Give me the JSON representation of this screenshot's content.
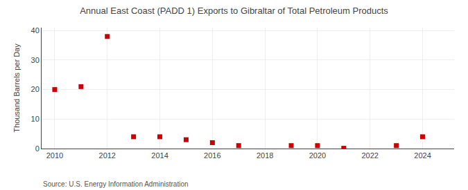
{
  "chart_data": {
    "type": "scatter",
    "title": "Annual East Coast (PADD 1) Exports to Gibraltar of Total Petroleum Products",
    "ylabel": "Thousand Barrels per Day",
    "annotations": [
      "Source: U.S. Energy Information Administration"
    ],
    "x": [
      2010,
      2011,
      2012,
      2013,
      2014,
      2015,
      2016,
      2017,
      2019,
      2020,
      2021,
      2023,
      2024
    ],
    "values": [
      20.0,
      21.0,
      38.0,
      4.0,
      4.0,
      3.0,
      2.0,
      1.0,
      1.0,
      1.0,
      0.1,
      1.0,
      4.0
    ],
    "color": "#cc0000",
    "marker": "square",
    "xlim": [
      2009.5,
      2025.2
    ],
    "ylim": [
      0,
      41
    ],
    "xticks": [
      2010,
      2012,
      2014,
      2016,
      2018,
      2020,
      2022,
      2024
    ],
    "yticks": [
      0,
      10,
      20,
      30,
      40
    ],
    "grid": true
  }
}
